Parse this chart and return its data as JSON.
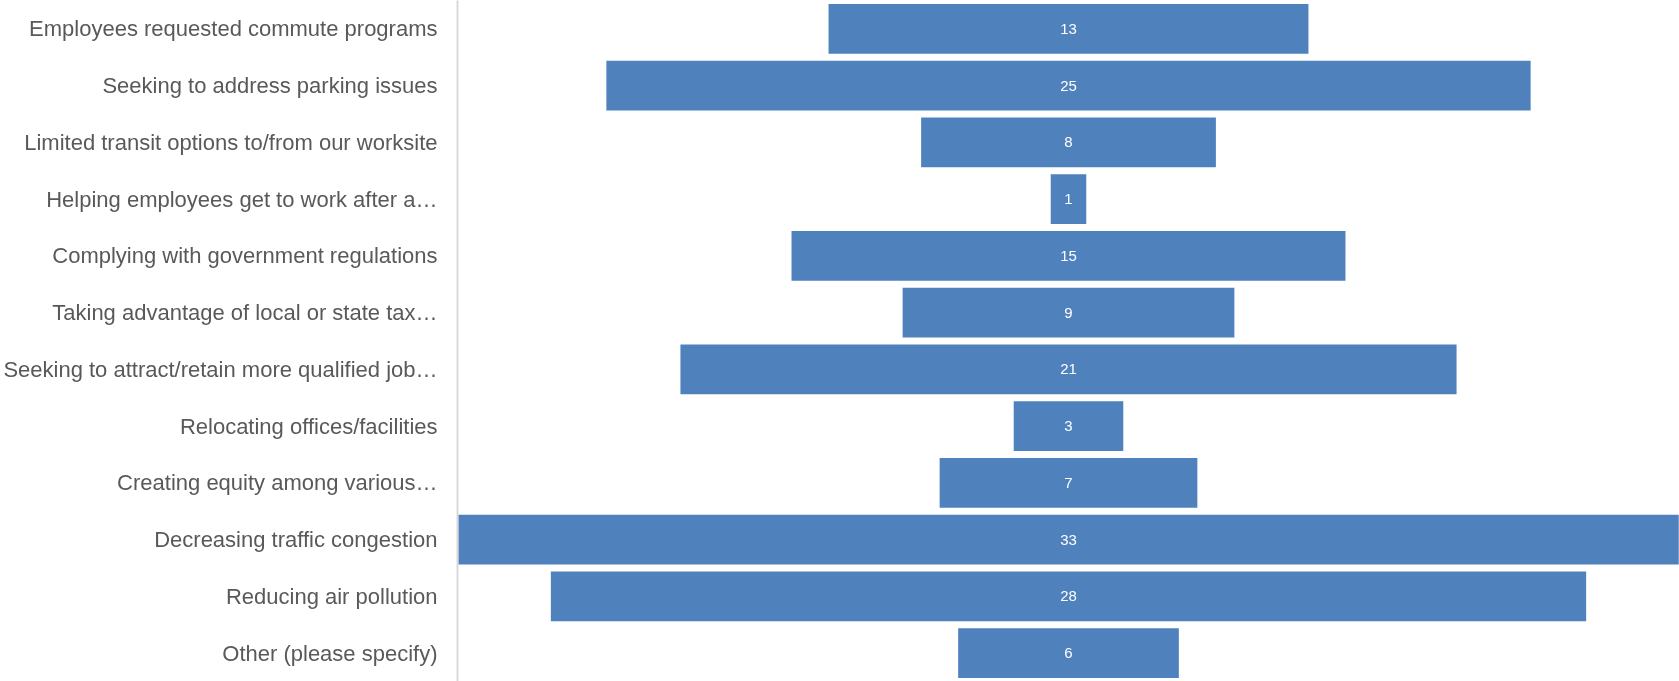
{
  "chart_data": {
    "type": "other",
    "categories": [
      "Employees requested commute programs",
      "Seeking to address parking issues",
      "Limited transit options to/from our worksite",
      "Helping employees get to work after a…",
      "Complying with government regulations",
      "Taking advantage of local or state tax…",
      "Seeking to attract/retain more qualified job…",
      "Relocating offices/facilities",
      "Creating equity among various…",
      "Decreasing traffic congestion",
      "Reducing air pollution",
      "Other (please specify)"
    ],
    "values": [
      13,
      25,
      8,
      1,
      15,
      9,
      21,
      3,
      7,
      33,
      28,
      6
    ],
    "color": "#4f81bd",
    "data_labels": true
  }
}
